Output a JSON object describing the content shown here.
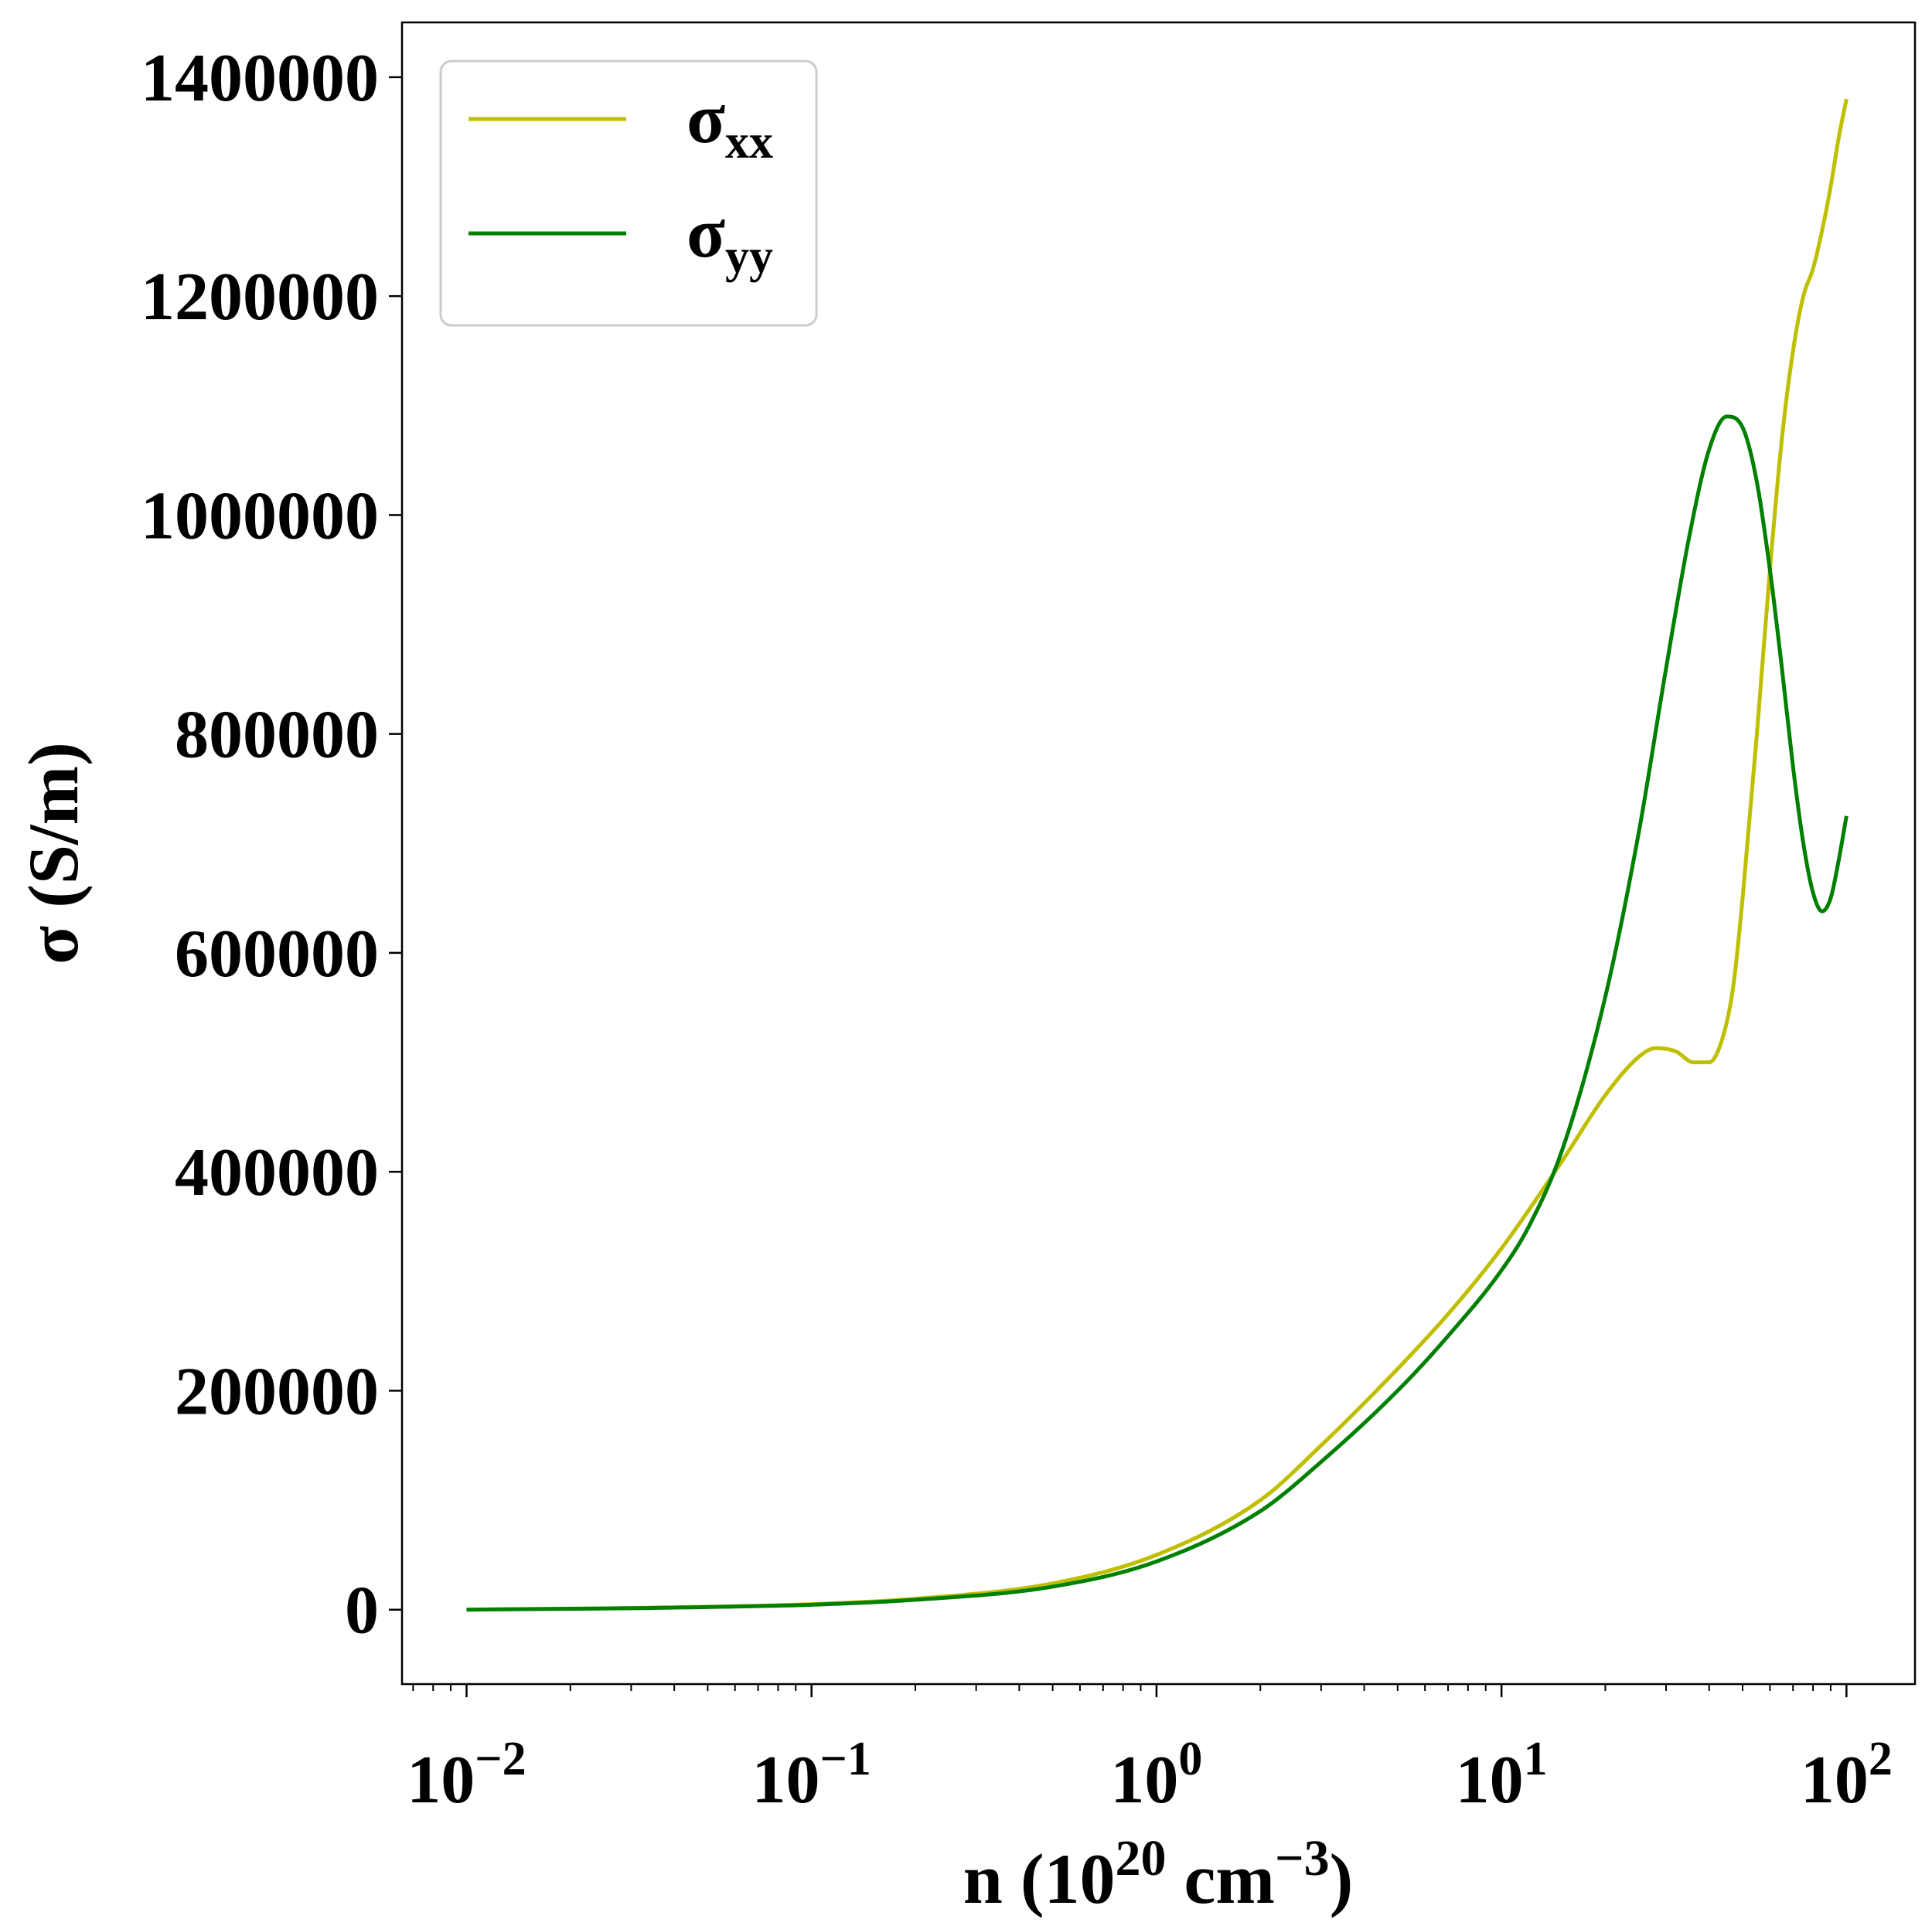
{
  "chart_data": {
    "type": "line",
    "xlabel": {
      "prefix": "n (10",
      "sup1": "20",
      "mid": " cm",
      "sup2": "−3",
      "suffix": ")"
    },
    "ylabel": "σ (S/m)",
    "x_scale": "log",
    "xlim": [
      0.0065,
      158
    ],
    "ylim": [
      -68000,
      1450000
    ],
    "x_ticks": [
      {
        "value": 0.01,
        "base": "10",
        "exp": "−2"
      },
      {
        "value": 0.1,
        "base": "10",
        "exp": "−1"
      },
      {
        "value": 1,
        "base": "10",
        "exp": "0"
      },
      {
        "value": 10,
        "base": "10",
        "exp": "1"
      },
      {
        "value": 100,
        "base": "10",
        "exp": "2"
      }
    ],
    "y_ticks": [
      {
        "value": 0,
        "label": "0"
      },
      {
        "value": 200000,
        "label": "200000"
      },
      {
        "value": 400000,
        "label": "400000"
      },
      {
        "value": 600000,
        "label": "600000"
      },
      {
        "value": 800000,
        "label": "800000"
      },
      {
        "value": 1000000,
        "label": "1000000"
      },
      {
        "value": 1200000,
        "label": "1200000"
      },
      {
        "value": 1400000,
        "label": "1400000"
      }
    ],
    "grid": false,
    "legend_position": "top-left",
    "series": [
      {
        "name": "σ",
        "sub": "xx",
        "color": "#bfbf00",
        "x": [
          0.01,
          0.03,
          0.1,
          0.2,
          0.5,
          1,
          2,
          3,
          5,
          7,
          10,
          15,
          20,
          25,
          28,
          32,
          36,
          40,
          44,
          47,
          50,
          55,
          60,
          65,
          70,
          75,
          80,
          85,
          90,
          95,
          100
        ],
        "y": [
          0,
          1500,
          5000,
          10000,
          24000,
          50000,
          100000,
          150000,
          220000,
          270000,
          330000,
          410000,
          470000,
          505000,
          513000,
          510000,
          500000,
          500000,
          525000,
          570000,
          650000,
          800000,
          950000,
          1070000,
          1150000,
          1200000,
          1225000,
          1260000,
          1300000,
          1345000,
          1380000
        ]
      },
      {
        "name": "σ",
        "sub": "yy",
        "color": "#008000",
        "x": [
          0.01,
          0.03,
          0.1,
          0.2,
          0.5,
          1,
          2,
          3,
          5,
          7,
          10,
          12,
          15,
          20,
          25,
          30,
          35,
          40,
          45,
          50,
          55,
          60,
          65,
          70,
          75,
          80,
          85,
          90,
          95,
          100
        ],
        "y": [
          0,
          1300,
          4500,
          9000,
          21000,
          44000,
          90000,
          135000,
          200000,
          250000,
          310000,
          350000,
          420000,
          560000,
          710000,
          860000,
          980000,
          1060000,
          1090000,
          1080000,
          1030000,
          950000,
          860000,
          770000,
          700000,
          655000,
          638000,
          650000,
          685000,
          725000
        ]
      }
    ]
  }
}
